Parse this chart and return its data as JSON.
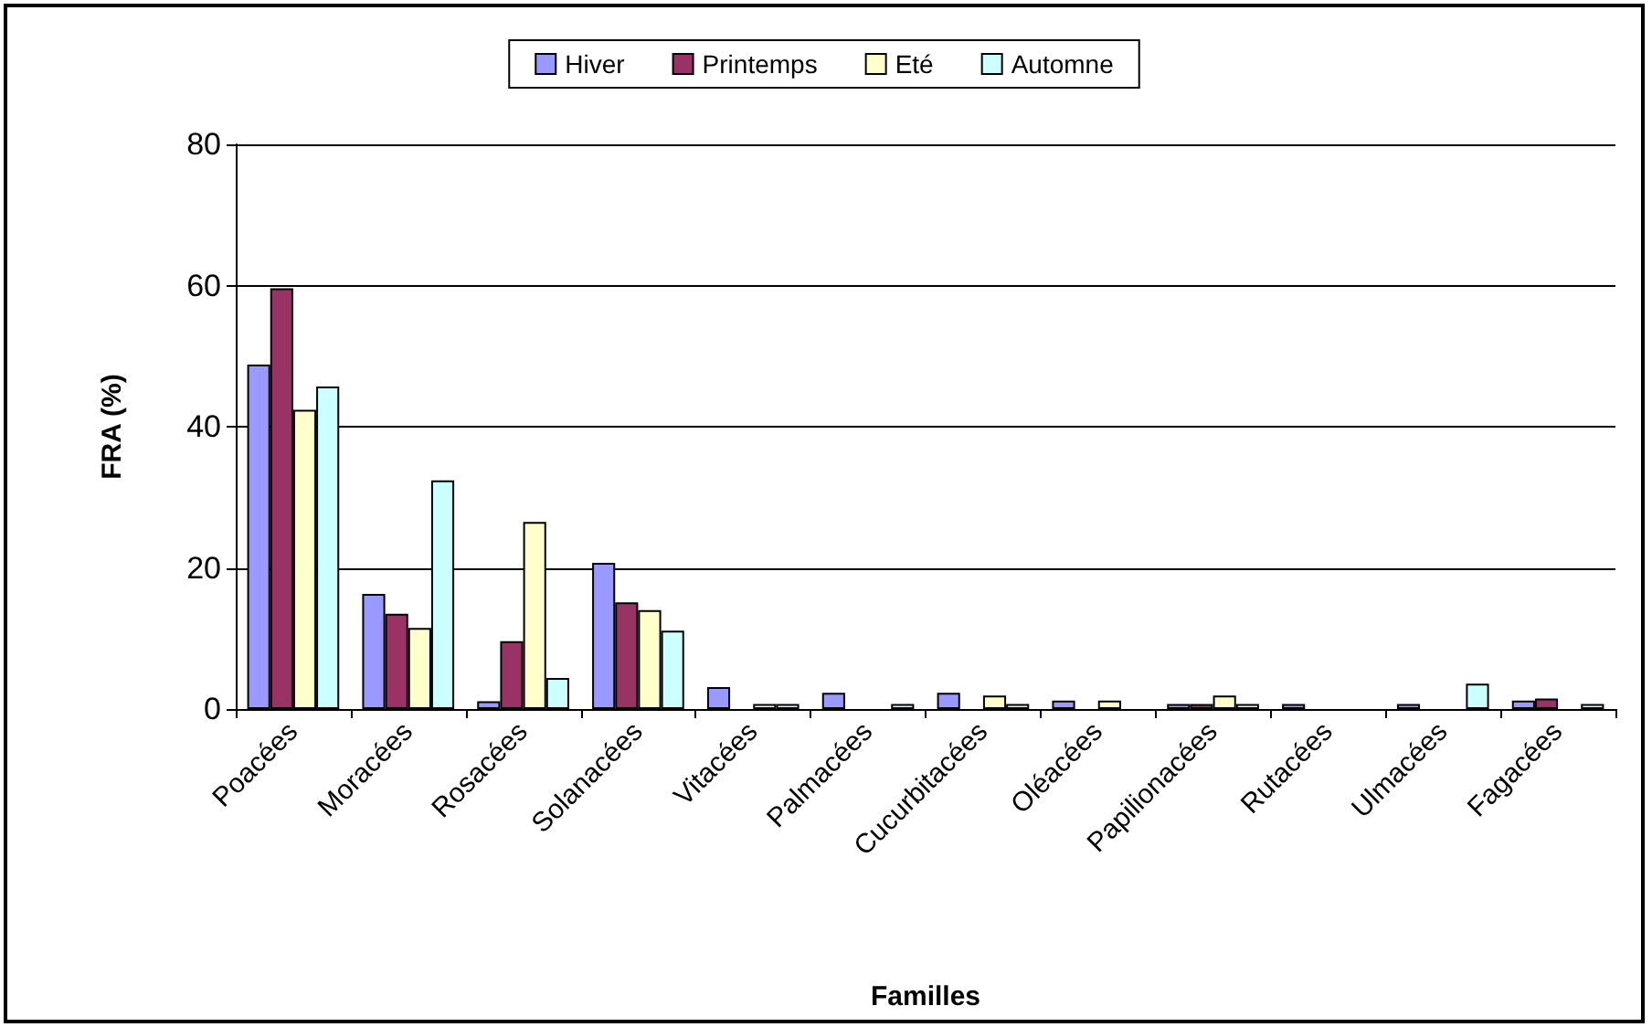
{
  "chart_data": {
    "type": "bar",
    "xlabel": "Familles",
    "ylabel": "FRA (%)",
    "categories": [
      "Poacées",
      "Moracées",
      "Rosacées",
      "Solanacées",
      "Vitacées",
      "Palmacées",
      "Cucurbitacées",
      "Oléacées",
      "Papilionacées",
      "Rutacées",
      "Ulmacées",
      "Fagacées"
    ],
    "series": [
      {
        "name": "Hiver",
        "color": "#9999ff",
        "values": [
          48.8,
          16.3,
          1.1,
          20.7,
          3.1,
          2.3,
          2.3,
          1.2,
          0.7,
          0.7,
          0.7,
          1.2
        ]
      },
      {
        "name": "Printemps",
        "color": "#993366",
        "values": [
          59.6,
          13.5,
          9.6,
          15.1,
          null,
          null,
          null,
          null,
          0.7,
          null,
          null,
          1.5
        ]
      },
      {
        "name": "Eté",
        "color": "#ffffcc",
        "values": [
          42.4,
          11.5,
          26.5,
          14.0,
          0.7,
          null,
          1.9,
          1.2,
          1.9,
          null,
          null,
          null
        ]
      },
      {
        "name": "Automne",
        "color": "#ccffff",
        "values": [
          45.7,
          32.4,
          4.4,
          11.1,
          0.7,
          0.7,
          0.7,
          null,
          0.7,
          null,
          3.6,
          0.7
        ]
      }
    ],
    "ylim": [
      0,
      80
    ],
    "yticks": [
      0,
      20,
      40,
      60,
      80
    ],
    "grid": "y",
    "legend": "top"
  }
}
